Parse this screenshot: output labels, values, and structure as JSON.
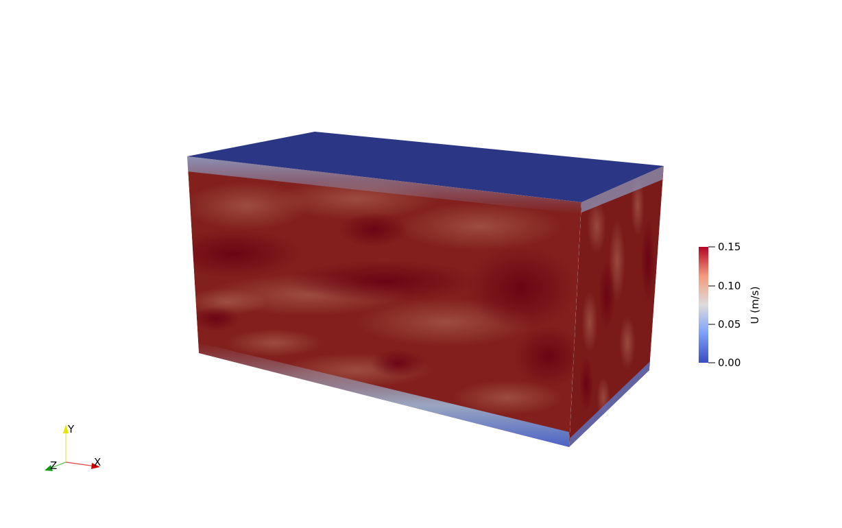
{
  "colorbar": {
    "title": "U (m/s)",
    "range": [
      0.0,
      0.15
    ],
    "ticks": [
      "0.15",
      "0.10",
      "0.05",
      "0.00"
    ],
    "colormap": "Cool to Warm",
    "low_color": "#3b4cc0",
    "mid_color": "#dddddd",
    "high_color": "#b40426"
  },
  "orientation_axes": {
    "x_label": "X",
    "y_label": "Y",
    "z_label": "Z",
    "x_color": "#ff0000",
    "y_color": "#ffff00",
    "z_color": "#00aa00"
  },
  "volume": {
    "top_face_color": "#2b3784",
    "front_face_color": "#82201d",
    "side_face_color": "#7a1a19",
    "wall_layer_color": "#4a63c6"
  }
}
